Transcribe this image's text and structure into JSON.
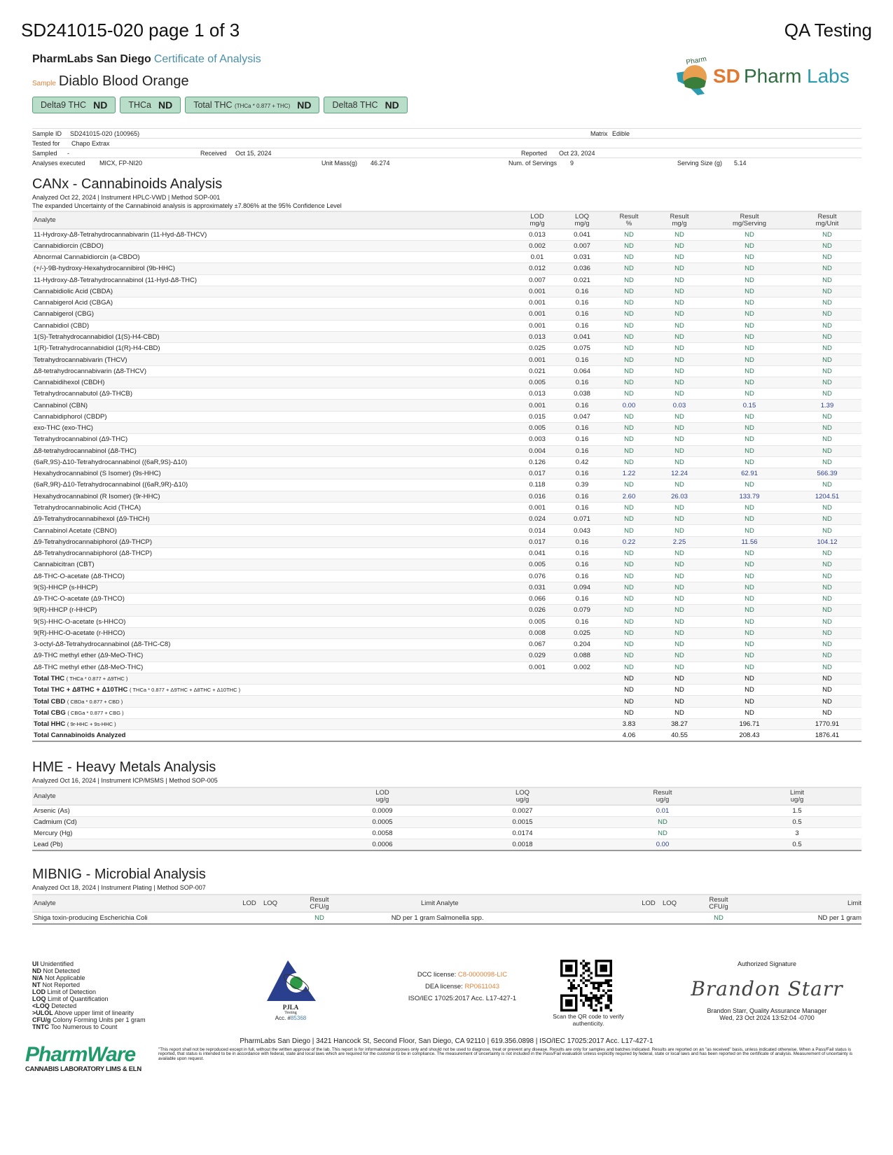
{
  "header": {
    "doc_title": "SD241015-020 page 1 of 3",
    "qa": "QA Testing",
    "lab": "PharmLabs San Diego",
    "coa": "Certificate of Analysis",
    "sample_label": "Sample",
    "sample_name": "Diablo Blood Orange",
    "logo_text": "SDPharmLabs",
    "logo_arc": "PharmLabs"
  },
  "badges": [
    {
      "label": "Delta9 THC",
      "note": "",
      "value": "ND"
    },
    {
      "label": "THCa",
      "note": "",
      "value": "ND"
    },
    {
      "label": "Total THC",
      "note": "(THCa * 0.877 + THC)",
      "value": "ND"
    },
    {
      "label": "Delta8 THC",
      "note": "",
      "value": "ND"
    }
  ],
  "info": {
    "sample_id_l": "Sample ID",
    "sample_id": "SD241015-020 (100965)",
    "matrix_l": "Matrix",
    "matrix": "Edible",
    "tested_for_l": "Tested for",
    "tested_for": "Chapo Extrax",
    "sampled_l": "Sampled",
    "sampled": "-",
    "received_l": "Received",
    "received": "Oct 15, 2024",
    "reported_l": "Reported",
    "reported": "Oct 23, 2024",
    "analyses_l": "Analyses executed",
    "analyses": "MICX, FP-NI20",
    "unit_mass_l": "Unit Mass(g)",
    "unit_mass": "46.274",
    "servings_l": "Num. of Servings",
    "servings": "9",
    "serving_size_l": "Serving Size (g)",
    "serving_size": "5.14"
  },
  "canx": {
    "title": "CANx - Cannabinoids Analysis",
    "sub": "Analyzed Oct 22, 2024  |  Instrument HPLC-VWD  | Method SOP-001",
    "uncertainty": "The expanded Uncertainty of the Cannabinoid analysis is approximately ±7.806% at the 95% Confidence Level",
    "headers": [
      "Analyte",
      "LOD\nmg/g",
      "LOQ\nmg/g",
      "Result\n%",
      "Result\nmg/g",
      "Result\nmg/Serving",
      "Result\nmg/Unit"
    ],
    "rows": [
      [
        "11-Hydroxy-Δ8-Tetrahydrocannabivarin (11-Hyd-Δ8-THCV)",
        "0.013",
        "0.041",
        "ND",
        "ND",
        "ND",
        "ND"
      ],
      [
        "Cannabidiorcin (CBDO)",
        "0.002",
        "0.007",
        "ND",
        "ND",
        "ND",
        "ND"
      ],
      [
        "Abnormal Cannabidiorcin (a-CBDO)",
        "0.01",
        "0.031",
        "ND",
        "ND",
        "ND",
        "ND"
      ],
      [
        "(+/-)-9B-hydroxy-Hexahydrocannibirol (9b-HHC)",
        "0.012",
        "0.036",
        "ND",
        "ND",
        "ND",
        "ND"
      ],
      [
        "11-Hydroxy-Δ8-Tetrahydrocannabinol (11-Hyd-Δ8-THC)",
        "0.007",
        "0.021",
        "ND",
        "ND",
        "ND",
        "ND"
      ],
      [
        "Cannabidiolic Acid (CBDA)",
        "0.001",
        "0.16",
        "ND",
        "ND",
        "ND",
        "ND"
      ],
      [
        "Cannabigerol Acid (CBGA)",
        "0.001",
        "0.16",
        "ND",
        "ND",
        "ND",
        "ND"
      ],
      [
        "Cannabigerol (CBG)",
        "0.001",
        "0.16",
        "ND",
        "ND",
        "ND",
        "ND"
      ],
      [
        "Cannabidiol (CBD)",
        "0.001",
        "0.16",
        "ND",
        "ND",
        "ND",
        "ND"
      ],
      [
        "1(S)-Tetrahydrocannabidiol (1(S)-H4-CBD)",
        "0.013",
        "0.041",
        "ND",
        "ND",
        "ND",
        "ND"
      ],
      [
        "1(R)-Tetrahydrocannabidiol (1(R)-H4-CBD)",
        "0.025",
        "0.075",
        "ND",
        "ND",
        "ND",
        "ND"
      ],
      [
        "Tetrahydrocannabivarin (THCV)",
        "0.001",
        "0.16",
        "ND",
        "ND",
        "ND",
        "ND"
      ],
      [
        "Δ8-tetrahydrocannabivarin (Δ8-THCV)",
        "0.021",
        "0.064",
        "ND",
        "ND",
        "ND",
        "ND"
      ],
      [
        "Cannabidihexol (CBDH)",
        "0.005",
        "0.16",
        "ND",
        "ND",
        "ND",
        "ND"
      ],
      [
        "Tetrahydrocannabutol (Δ9-THCB)",
        "0.013",
        "0.038",
        "ND",
        "ND",
        "ND",
        "ND"
      ],
      [
        "Cannabinol (CBN)",
        "0.001",
        "0.16",
        "0.00",
        "0.03",
        "0.15",
        "1.39"
      ],
      [
        "Cannabidiphorol (CBDP)",
        "0.015",
        "0.047",
        "ND",
        "ND",
        "ND",
        "ND"
      ],
      [
        "exo-THC (exo-THC)",
        "0.005",
        "0.16",
        "ND",
        "ND",
        "ND",
        "ND"
      ],
      [
        "Tetrahydrocannabinol (Δ9-THC)",
        "0.003",
        "0.16",
        "ND",
        "ND",
        "ND",
        "ND"
      ],
      [
        "Δ8-tetrahydrocannabinol (Δ8-THC)",
        "0.004",
        "0.16",
        "ND",
        "ND",
        "ND",
        "ND"
      ],
      [
        "(6aR,9S)-Δ10-Tetrahydrocannabinol ((6aR,9S)-Δ10)",
        "0.126",
        "0.42",
        "ND",
        "ND",
        "ND",
        "ND"
      ],
      [
        "Hexahydrocannabinol (S Isomer) (9s-HHC)",
        "0.017",
        "0.16",
        "1.22",
        "12.24",
        "62.91",
        "566.39"
      ],
      [
        "(6aR,9R)-Δ10-Tetrahydrocannabinol ((6aR,9R)-Δ10)",
        "0.118",
        "0.39",
        "ND",
        "ND",
        "ND",
        "ND"
      ],
      [
        "Hexahydrocannabinol (R Isomer) (9r-HHC)",
        "0.016",
        "0.16",
        "2.60",
        "26.03",
        "133.79",
        "1204.51"
      ],
      [
        "Tetrahydrocannabinolic Acid (THCA)",
        "0.001",
        "0.16",
        "ND",
        "ND",
        "ND",
        "ND"
      ],
      [
        "Δ9-Tetrahydrocannabihexol (Δ9-THCH)",
        "0.024",
        "0.071",
        "ND",
        "ND",
        "ND",
        "ND"
      ],
      [
        "Cannabinol Acetate (CBNO)",
        "0.014",
        "0.043",
        "ND",
        "ND",
        "ND",
        "ND"
      ],
      [
        "Δ9-Tetrahydrocannabiphorol (Δ9-THCP)",
        "0.017",
        "0.16",
        "0.22",
        "2.25",
        "11.56",
        "104.12"
      ],
      [
        "Δ8-Tetrahydrocannabiphorol (Δ8-THCP)",
        "0.041",
        "0.16",
        "ND",
        "ND",
        "ND",
        "ND"
      ],
      [
        "Cannabicitran (CBT)",
        "0.005",
        "0.16",
        "ND",
        "ND",
        "ND",
        "ND"
      ],
      [
        "Δ8-THC-O-acetate (Δ8-THCO)",
        "0.076",
        "0.16",
        "ND",
        "ND",
        "ND",
        "ND"
      ],
      [
        "9(S)-HHCP (s-HHCP)",
        "0.031",
        "0.094",
        "ND",
        "ND",
        "ND",
        "ND"
      ],
      [
        "Δ9-THC-O-acetate (Δ9-THCO)",
        "0.066",
        "0.16",
        "ND",
        "ND",
        "ND",
        "ND"
      ],
      [
        "9(R)-HHCP (r-HHCP)",
        "0.026",
        "0.079",
        "ND",
        "ND",
        "ND",
        "ND"
      ],
      [
        "9(S)-HHC-O-acetate (s-HHCO)",
        "0.005",
        "0.16",
        "ND",
        "ND",
        "ND",
        "ND"
      ],
      [
        "9(R)-HHC-O-acetate (r-HHCO)",
        "0.008",
        "0.025",
        "ND",
        "ND",
        "ND",
        "ND"
      ],
      [
        "3-octyl-Δ8-Tetrahydrocannabinol (Δ8-THC-C8)",
        "0.067",
        "0.204",
        "ND",
        "ND",
        "ND",
        "ND"
      ],
      [
        "Δ9-THC methyl ether (Δ9-MeO-THC)",
        "0.029",
        "0.088",
        "ND",
        "ND",
        "ND",
        "ND"
      ],
      [
        "Δ8-THC methyl ether (Δ8-MeO-THC)",
        "0.001",
        "0.002",
        "ND",
        "ND",
        "ND",
        "ND"
      ]
    ],
    "totals": [
      {
        "label": "Total THC",
        "note": "( THCa * 0.877 + Δ9THC )",
        "values": [
          "ND",
          "ND",
          "ND",
          "ND"
        ]
      },
      {
        "label": "Total THC + Δ8THC + Δ10THC",
        "note": "( THCa * 0.877 + Δ9THC + Δ8THC + Δ10THC )",
        "values": [
          "ND",
          "ND",
          "ND",
          "ND"
        ]
      },
      {
        "label": "Total CBD",
        "note": "( CBDa * 0.877 + CBD )",
        "values": [
          "ND",
          "ND",
          "ND",
          "ND"
        ]
      },
      {
        "label": "Total CBG",
        "note": "( CBGa * 0.877 + CBG )",
        "values": [
          "ND",
          "ND",
          "ND",
          "ND"
        ]
      },
      {
        "label": "Total HHC",
        "note": "( 9r-HHC + 9s-HHC )",
        "values": [
          "3.83",
          "38.27",
          "196.71",
          "1770.91"
        ]
      },
      {
        "label": "Total Cannabinoids Analyzed",
        "note": "",
        "values": [
          "4.06",
          "40.55",
          "208.43",
          "1876.41"
        ]
      }
    ]
  },
  "hme": {
    "title": "HME - Heavy Metals Analysis",
    "sub": "Analyzed Oct 16, 2024  |  Instrument ICP/MSMS  | Method SOP-005",
    "headers": [
      "Analyte",
      "LOD\nug/g",
      "LOQ\nug/g",
      "Result\nug/g",
      "Limit\nug/g"
    ],
    "rows": [
      [
        "Arsenic (As)",
        "0.0009",
        "0.0027",
        "0.01",
        "1.5"
      ],
      [
        "Cadmium (Cd)",
        "0.0005",
        "0.0015",
        "ND",
        "0.5"
      ],
      [
        "Mercury (Hg)",
        "0.0058",
        "0.0174",
        "ND",
        "3"
      ],
      [
        "Lead (Pb)",
        "0.0006",
        "0.0018",
        "0.00",
        "0.5"
      ]
    ]
  },
  "mic": {
    "title": "MIBNIG - Microbial Analysis",
    "sub": "Analyzed Oct 18, 2024  |  Instrument Plating  | Method SOP-007",
    "headers": [
      "Analyte",
      "LOD",
      "LOQ",
      "Result\nCFU/g",
      "Limit",
      "Analyte",
      "LOD",
      "LOQ",
      "Result\nCFU/g",
      "Limit"
    ],
    "rows": [
      [
        "Shiga toxin-producing Escherichia Coli",
        "",
        "",
        "ND",
        "ND per 1 gram",
        "Salmonella spp.",
        "",
        "",
        "ND",
        "ND per 1 gram"
      ]
    ]
  },
  "legend": [
    [
      "UI",
      "Unidentified"
    ],
    [
      "ND",
      "Not Detected"
    ],
    [
      "N/A",
      "Not Applicable"
    ],
    [
      "NT",
      "Not Reported"
    ],
    [
      "LOD",
      "Limit of Detection"
    ],
    [
      "LOQ",
      "Limit of Quantification"
    ],
    [
      "<LOQ",
      "Detected"
    ],
    [
      ">ULOL",
      "Above upper limit of linearity"
    ],
    [
      "CFU/g",
      "Colony Forming Units per 1 gram"
    ],
    [
      "TNTC",
      "Too Numerous to Count"
    ]
  ],
  "footer": {
    "pjla": "PJLA",
    "pjla_sub": "Testing",
    "acc_l": "Acc. #",
    "acc": "85368",
    "dcc_l": "DCC license:",
    "dcc": "C8-0000098-LIC",
    "dea_l": "DEA license:",
    "dea": "RP0611043",
    "iso": "ISO/IEC 17025:2017 Acc. L17-427-1",
    "qr_caption": "Scan the QR code to verify authenticity.",
    "sig_label": "Authorized Signature",
    "sig_script": "Brandon Starr",
    "signer": "Brandon Starr, Quality Assurance Manager",
    "sig_date": "Wed, 23 Oct 2024 13:52:04 -0700",
    "address": "PharmLabs San Diego | 3421 Hancock St, Second Floor, San Diego, CA 92110 | 619.356.0898 | ISO/IEC 17025:2017 Acc. L17-427-1",
    "disclaimer": "\"This report shall not be reproduced except in full, without the written approval of the lab. This report is for informational purposes only and should not be used to diagnose, treat or prevent any disease. Results are only for samples and batches indicated. Results are reported on an \"as received\" basis, unless indicated otherwise. When a Pass/Fail status is reported, that status is intended to be in accordance with federal, state and local laws which are required for the customer to be in compliance. The measurement of uncertainty is not included in the Pass/Fail evaluation unless explicitly required by federal, state or local laws and has been reported on the certificate of analysis. Measurement of uncertainty is available upon request.",
    "pw_logo": "PharmWare",
    "pw_sub": "CANNABIS LABORATORY LIMS & ELN"
  },
  "colors": {
    "nd": "#2e7d5b",
    "result": "#2c3e8f",
    "badge": "#b8ddc9",
    "accent_teal": "#4a8fa8",
    "accent_orange": "#e0823a"
  }
}
